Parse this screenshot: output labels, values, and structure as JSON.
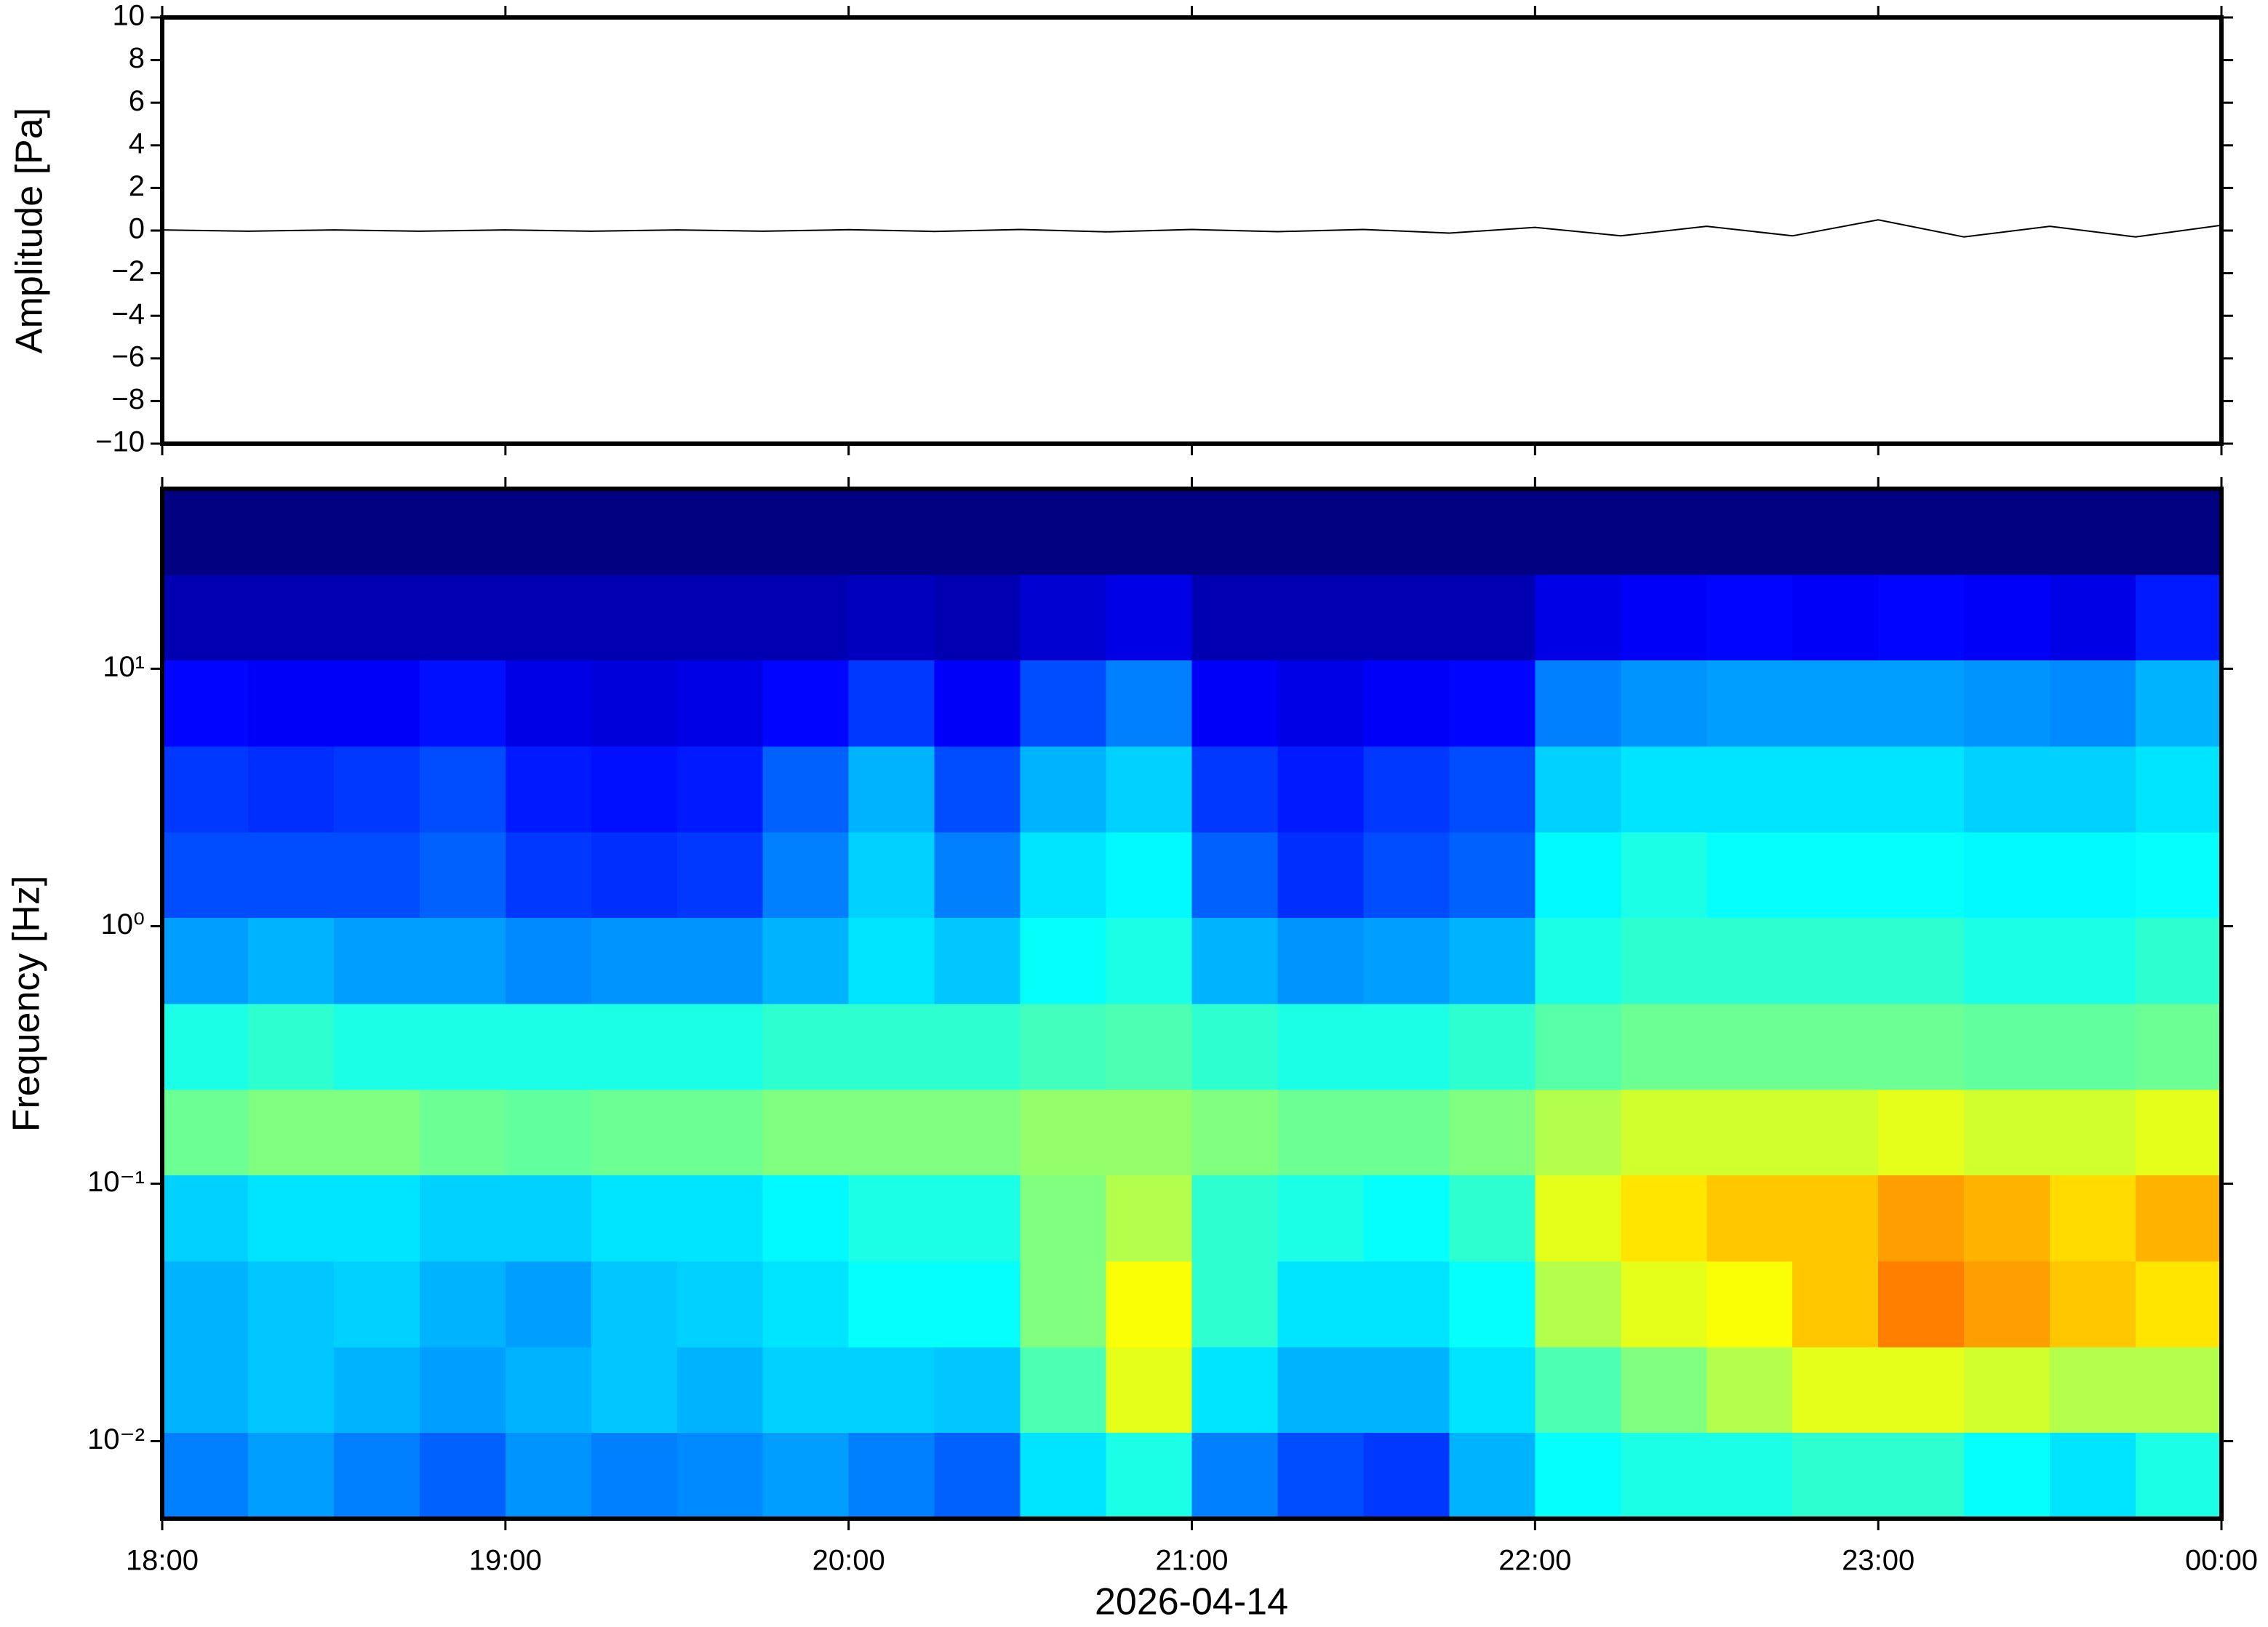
{
  "chart_data": [
    {
      "type": "line",
      "ylabel": "Amplitude [Pa]",
      "color": "#000000",
      "x": [
        18,
        18.25,
        18.5,
        18.75,
        19,
        19.25,
        19.5,
        19.75,
        20,
        20.25,
        20.5,
        20.75,
        21,
        21.25,
        21.5,
        21.75,
        22,
        22.25,
        22.5,
        22.75,
        23,
        23.25,
        23.5,
        23.75,
        24
      ],
      "values": [
        0.03,
        -0.03,
        0.03,
        -0.03,
        0.03,
        -0.03,
        0.03,
        -0.03,
        0.04,
        -0.04,
        0.05,
        -0.06,
        0.05,
        -0.05,
        0.05,
        -0.12,
        0.15,
        -0.25,
        0.2,
        -0.25,
        0.5,
        -0.3,
        0.2,
        -0.3,
        0.25
      ],
      "xlim": [
        18,
        24
      ],
      "xticks": [
        {
          "value": 18,
          "label": "18:00"
        },
        {
          "value": 19,
          "label": "19:00"
        },
        {
          "value": 20,
          "label": "20:00"
        },
        {
          "value": 21,
          "label": "21:00"
        },
        {
          "value": 22,
          "label": "22:00"
        },
        {
          "value": 23,
          "label": "23:00"
        },
        {
          "value": 24,
          "label": "00:00"
        }
      ],
      "ylim": [
        -10,
        10
      ],
      "yticks": [
        {
          "value": -10,
          "label": "−10"
        },
        {
          "value": -8,
          "label": "−8"
        },
        {
          "value": -6,
          "label": "−6"
        },
        {
          "value": -4,
          "label": "−4"
        },
        {
          "value": -2,
          "label": "−2"
        },
        0,
        2,
        4,
        6,
        8,
        10
      ]
    },
    {
      "type": "heatmap",
      "ylabel": "Frequency [Hz]",
      "xlabel": "2026-04-14",
      "colormap": "jet",
      "log_y": true,
      "zlim": [
        0,
        1
      ],
      "x": [
        18,
        18.25,
        18.5,
        18.75,
        19,
        19.25,
        19.5,
        19.75,
        20,
        20.25,
        20.5,
        20.75,
        21,
        21.25,
        21.5,
        21.75,
        22,
        22.25,
        22.5,
        22.75,
        23,
        23.25,
        23.5,
        23.75,
        24
      ],
      "y": [
        0.005,
        0.0108,
        0.0232,
        0.05,
        0.108,
        0.232,
        0.5,
        1.08,
        2.32,
        5,
        10.8,
        23.2,
        50
      ],
      "values": [
        [
          0.25,
          0.28,
          0.25,
          0.22,
          0.27,
          0.25,
          0.26,
          0.28,
          0.25,
          0.22,
          0.35,
          0.4,
          0.25,
          0.2,
          0.18,
          0.3,
          0.38,
          0.4,
          0.4,
          0.42,
          0.42,
          0.38,
          0.35,
          0.4
        ],
        [
          0.3,
          0.32,
          0.3,
          0.28,
          0.3,
          0.32,
          0.3,
          0.33,
          0.33,
          0.32,
          0.45,
          0.6,
          0.35,
          0.3,
          0.3,
          0.35,
          0.45,
          0.5,
          0.55,
          0.6,
          0.6,
          0.58,
          0.55,
          0.55
        ],
        [
          0.3,
          0.32,
          0.33,
          0.3,
          0.28,
          0.32,
          0.33,
          0.35,
          0.38,
          0.38,
          0.5,
          0.62,
          0.42,
          0.35,
          0.35,
          0.38,
          0.55,
          0.6,
          0.62,
          0.68,
          0.75,
          0.72,
          0.68,
          0.65
        ],
        [
          0.33,
          0.35,
          0.35,
          0.33,
          0.33,
          0.35,
          0.35,
          0.37,
          0.4,
          0.4,
          0.5,
          0.55,
          0.42,
          0.4,
          0.38,
          0.42,
          0.6,
          0.65,
          0.68,
          0.68,
          0.72,
          0.7,
          0.66,
          0.7
        ],
        [
          0.48,
          0.5,
          0.5,
          0.48,
          0.47,
          0.48,
          0.48,
          0.5,
          0.5,
          0.5,
          0.52,
          0.52,
          0.5,
          0.48,
          0.48,
          0.5,
          0.55,
          0.58,
          0.58,
          0.58,
          0.6,
          0.58,
          0.58,
          0.6
        ],
        [
          0.4,
          0.42,
          0.4,
          0.4,
          0.4,
          0.4,
          0.4,
          0.42,
          0.42,
          0.42,
          0.44,
          0.45,
          0.42,
          0.4,
          0.4,
          0.42,
          0.46,
          0.48,
          0.48,
          0.48,
          0.48,
          0.47,
          0.47,
          0.48
        ],
        [
          0.28,
          0.3,
          0.28,
          0.28,
          0.26,
          0.27,
          0.27,
          0.3,
          0.35,
          0.32,
          0.38,
          0.4,
          0.3,
          0.27,
          0.28,
          0.3,
          0.4,
          0.42,
          0.42,
          0.42,
          0.42,
          0.4,
          0.4,
          0.42
        ],
        [
          0.2,
          0.2,
          0.2,
          0.22,
          0.18,
          0.17,
          0.18,
          0.25,
          0.33,
          0.25,
          0.35,
          0.37,
          0.22,
          0.17,
          0.2,
          0.22,
          0.37,
          0.4,
          0.38,
          0.38,
          0.38,
          0.37,
          0.37,
          0.38
        ],
        [
          0.18,
          0.17,
          0.18,
          0.2,
          0.15,
          0.14,
          0.15,
          0.22,
          0.3,
          0.2,
          0.3,
          0.33,
          0.18,
          0.15,
          0.18,
          0.2,
          0.33,
          0.35,
          0.35,
          0.35,
          0.35,
          0.33,
          0.33,
          0.35
        ],
        [
          0.13,
          0.12,
          0.12,
          0.14,
          0.1,
          0.09,
          0.1,
          0.13,
          0.18,
          0.12,
          0.2,
          0.25,
          0.12,
          0.1,
          0.12,
          0.13,
          0.25,
          0.27,
          0.28,
          0.28,
          0.28,
          0.27,
          0.26,
          0.3
        ],
        [
          0.05,
          0.05,
          0.05,
          0.05,
          0.05,
          0.05,
          0.05,
          0.05,
          0.06,
          0.05,
          0.08,
          0.1,
          0.05,
          0.05,
          0.05,
          0.05,
          0.1,
          0.12,
          0.13,
          0.12,
          0.13,
          0.12,
          0.1,
          0.15
        ],
        [
          0,
          0,
          0,
          0,
          0,
          0,
          0,
          0,
          0,
          0,
          0,
          0,
          0,
          0,
          0,
          0,
          0,
          0,
          0,
          0,
          0,
          0,
          0,
          0
        ]
      ],
      "xlim": [
        18,
        24
      ],
      "xticks": [
        {
          "value": 18,
          "label": "18:00"
        },
        {
          "value": 19,
          "label": "19:00"
        },
        {
          "value": 20,
          "label": "20:00"
        },
        {
          "value": 21,
          "label": "21:00"
        },
        {
          "value": 22,
          "label": "22:00"
        },
        {
          "value": 23,
          "label": "23:00"
        },
        {
          "value": 24,
          "label": "00:00"
        }
      ],
      "ylim": [
        0.005,
        50
      ],
      "yticks": [
        {
          "value": 0.01,
          "label": "10⁻²"
        },
        {
          "value": 0.1,
          "label": "10⁻¹"
        },
        {
          "value": 1,
          "label": "10⁰"
        },
        {
          "value": 10,
          "label": "10¹"
        }
      ]
    }
  ]
}
